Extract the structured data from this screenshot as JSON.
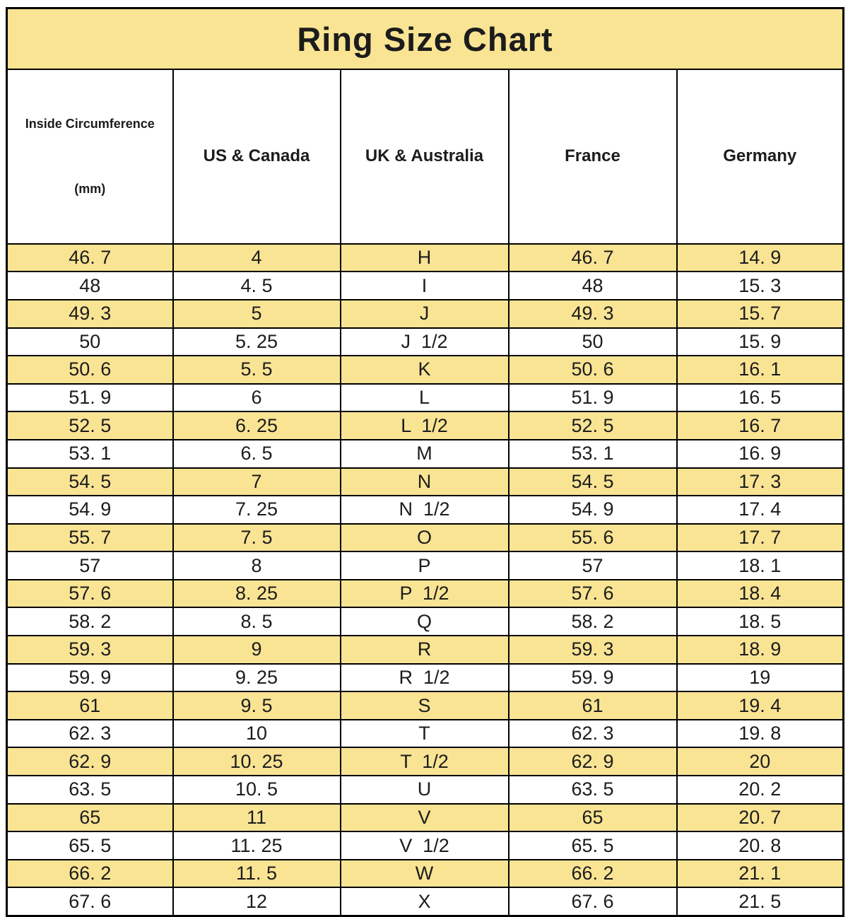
{
  "title": "Ring Size Chart",
  "colors": {
    "highlight": "#F9E494",
    "border": "#000000",
    "title_text": "#333333",
    "cell_text": "#1c1c1c",
    "background": "#FFFFFF"
  },
  "table": {
    "columns": [
      {
        "label": "Inside Circumference",
        "sublabel": "(mm)"
      },
      {
        "label": "US & Canada",
        "sublabel": ""
      },
      {
        "label": "UK & Australia",
        "sublabel": ""
      },
      {
        "label": "France",
        "sublabel": ""
      },
      {
        "label": "Germany",
        "sublabel": ""
      }
    ],
    "rows": [
      [
        "46. 7",
        "4",
        "H",
        "46. 7",
        "14. 9"
      ],
      [
        "48",
        "4. 5",
        "I",
        "48",
        "15. 3"
      ],
      [
        "49. 3",
        "5",
        "J",
        "49. 3",
        "15. 7"
      ],
      [
        "50",
        "5. 25",
        "J  1/2",
        "50",
        "15. 9"
      ],
      [
        "50. 6",
        "5. 5",
        "K",
        "50. 6",
        "16. 1"
      ],
      [
        "51. 9",
        "6",
        "L",
        "51. 9",
        "16. 5"
      ],
      [
        "52. 5",
        "6. 25",
        "L  1/2",
        "52. 5",
        "16. 7"
      ],
      [
        "53. 1",
        "6. 5",
        "M",
        "53. 1",
        "16. 9"
      ],
      [
        "54. 5",
        "7",
        "N",
        "54. 5",
        "17. 3"
      ],
      [
        "54. 9",
        "7. 25",
        "N  1/2",
        "54. 9",
        "17. 4"
      ],
      [
        "55. 7",
        "7. 5",
        "O",
        "55. 6",
        "17. 7"
      ],
      [
        "57",
        "8",
        "P",
        "57",
        "18. 1"
      ],
      [
        "57. 6",
        "8. 25",
        "P  1/2",
        "57. 6",
        "18. 4"
      ],
      [
        "58. 2",
        "8. 5",
        "Q",
        "58. 2",
        "18. 5"
      ],
      [
        "59. 3",
        "9",
        "R",
        "59. 3",
        "18. 9"
      ],
      [
        "59. 9",
        "9. 25",
        "R  1/2",
        "59. 9",
        "19"
      ],
      [
        "61",
        "9. 5",
        "S",
        "61",
        "19. 4"
      ],
      [
        "62. 3",
        "10",
        "T",
        "62. 3",
        "19. 8"
      ],
      [
        "62. 9",
        "10. 25",
        "T  1/2",
        "62. 9",
        "20"
      ],
      [
        "63. 5",
        "10. 5",
        "U",
        "63. 5",
        "20. 2"
      ],
      [
        "65",
        "11",
        "V",
        "65",
        "20. 7"
      ],
      [
        "65. 5",
        "11. 25",
        "V  1/2",
        "65. 5",
        "20. 8"
      ],
      [
        "66. 2",
        "11. 5",
        "W",
        "66. 2",
        "21. 1"
      ],
      [
        "67. 6",
        "12",
        "X",
        "67. 6",
        "21. 5"
      ]
    ]
  },
  "chart_data": {
    "type": "table",
    "title": "Ring Size Chart",
    "columns": [
      "Inside Circumference (mm)",
      "US & Canada",
      "UK & Australia",
      "France",
      "Germany"
    ],
    "rows": [
      [
        "46.7",
        "4",
        "H",
        "46.7",
        "14.9"
      ],
      [
        "48",
        "4.5",
        "I",
        "48",
        "15.3"
      ],
      [
        "49.3",
        "5",
        "J",
        "49.3",
        "15.7"
      ],
      [
        "50",
        "5.25",
        "J 1/2",
        "50",
        "15.9"
      ],
      [
        "50.6",
        "5.5",
        "K",
        "50.6",
        "16.1"
      ],
      [
        "51.9",
        "6",
        "L",
        "51.9",
        "16.5"
      ],
      [
        "52.5",
        "6.25",
        "L 1/2",
        "52.5",
        "16.7"
      ],
      [
        "53.1",
        "6.5",
        "M",
        "53.1",
        "16.9"
      ],
      [
        "54.5",
        "7",
        "N",
        "54.5",
        "17.3"
      ],
      [
        "54.9",
        "7.25",
        "N 1/2",
        "54.9",
        "17.4"
      ],
      [
        "55.7",
        "7.5",
        "O",
        "55.6",
        "17.7"
      ],
      [
        "57",
        "8",
        "P",
        "57",
        "18.1"
      ],
      [
        "57.6",
        "8.25",
        "P 1/2",
        "57.6",
        "18.4"
      ],
      [
        "58.2",
        "8.5",
        "Q",
        "58.2",
        "18.5"
      ],
      [
        "59.3",
        "9",
        "R",
        "59.3",
        "18.9"
      ],
      [
        "59.9",
        "9.25",
        "R 1/2",
        "59.9",
        "19"
      ],
      [
        "61",
        "9.5",
        "S",
        "61",
        "19.4"
      ],
      [
        "62.3",
        "10",
        "T",
        "62.3",
        "19.8"
      ],
      [
        "62.9",
        "10.25",
        "T 1/2",
        "62.9",
        "20"
      ],
      [
        "63.5",
        "10.5",
        "U",
        "63.5",
        "20.2"
      ],
      [
        "65",
        "11",
        "V",
        "65",
        "20.7"
      ],
      [
        "65.5",
        "11.25",
        "V 1/2",
        "65.5",
        "20.8"
      ],
      [
        "66.2",
        "11.5",
        "W",
        "66.2",
        "21.1"
      ],
      [
        "67.6",
        "12",
        "X",
        "67.6",
        "21.5"
      ]
    ],
    "layout": {
      "highlighted_rows": "odd rows (1st, 3rd, 5th, ...) have yellow background",
      "highlight_color": "#F9E494",
      "grid": "black 2-3px borders on all cells"
    }
  }
}
